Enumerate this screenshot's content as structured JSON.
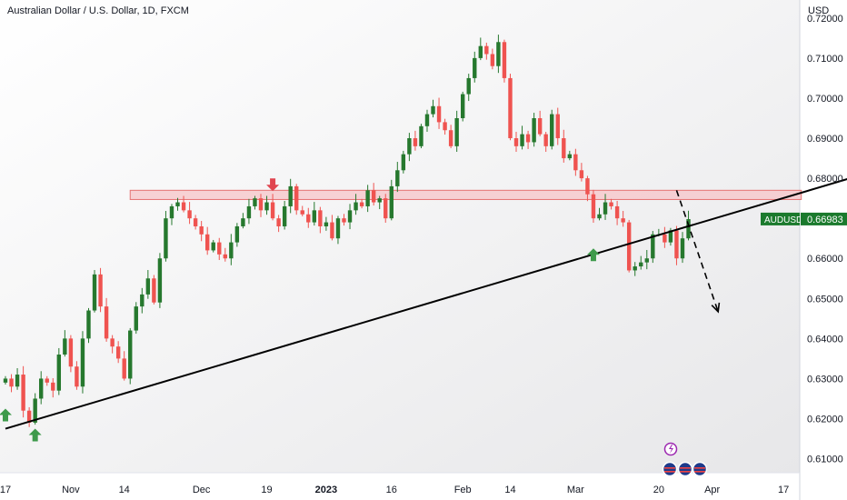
{
  "chart_data": {
    "type": "candlestick",
    "title": "Australian Dollar / U.S. Dollar, 1D, FXCM",
    "currency_label": "USD",
    "symbol_label": "AUDUSD",
    "last_price_text": "0.66983",
    "last_price": 0.66983,
    "ylim": [
      0.6065,
      0.7245
    ],
    "y_ticks": [
      "0.72000",
      "0.71000",
      "0.70000",
      "0.69000",
      "0.68000",
      "0.67000",
      "0.66000",
      "0.65000",
      "0.64000",
      "0.63000",
      "0.62000",
      "0.61000"
    ],
    "x_ticks": [
      {
        "label": "17",
        "i": 0
      },
      {
        "label": "Nov",
        "i": 11
      },
      {
        "label": "14",
        "i": 20
      },
      {
        "label": "Dec",
        "i": 33
      },
      {
        "label": "19",
        "i": 44
      },
      {
        "label": "2023",
        "i": 54,
        "bold": true
      },
      {
        "label": "16",
        "i": 65
      },
      {
        "label": "Feb",
        "i": 77
      },
      {
        "label": "14",
        "i": 85
      },
      {
        "label": "Mar",
        "i": 96
      },
      {
        "label": "20",
        "i": 110
      },
      {
        "label": "Apr",
        "i": 119
      },
      {
        "label": "17",
        "i": 131
      }
    ],
    "closes": [
      0.63,
      0.628,
      0.631,
      0.622,
      0.619,
      0.625,
      0.63,
      0.629,
      0.627,
      0.636,
      0.64,
      0.633,
      0.628,
      0.64,
      0.647,
      0.656,
      0.648,
      0.64,
      0.638,
      0.635,
      0.63,
      0.642,
      0.648,
      0.651,
      0.655,
      0.649,
      0.66,
      0.67,
      0.673,
      0.674,
      0.672,
      0.67,
      0.668,
      0.666,
      0.662,
      0.664,
      0.661,
      0.66,
      0.664,
      0.668,
      0.67,
      0.673,
      0.675,
      0.672,
      0.674,
      0.67,
      0.668,
      0.673,
      0.678,
      0.672,
      0.671,
      0.669,
      0.672,
      0.668,
      0.669,
      0.665,
      0.67,
      0.669,
      0.672,
      0.674,
      0.673,
      0.677,
      0.674,
      0.675,
      0.67,
      0.678,
      0.682,
      0.686,
      0.69,
      0.688,
      0.693,
      0.696,
      0.698,
      0.694,
      0.692,
      0.688,
      0.695,
      0.701,
      0.705,
      0.71,
      0.713,
      0.711,
      0.708,
      0.714,
      0.705,
      0.69,
      0.688,
      0.691,
      0.689,
      0.695,
      0.691,
      0.688,
      0.696,
      0.69,
      0.685,
      0.686,
      0.682,
      0.68,
      0.676,
      0.67,
      0.671,
      0.674,
      0.673,
      0.67,
      0.669,
      0.657,
      0.658,
      0.659,
      0.66,
      0.666,
      0.666,
      0.664,
      0.667,
      0.66,
      0.665,
      0.6698
    ],
    "annotations": {
      "resistance_zone": {
        "from": 0.6747,
        "to": 0.677,
        "i_start": 21,
        "i_end": 134
      },
      "trendline": {
        "i_start": 0,
        "p_start": 0.6175,
        "i_end": 152,
        "p_end": 0.6843
      },
      "projection_arrow": {
        "i_start": 113,
        "p_start": 0.677,
        "i_end": 120,
        "p_end": 0.6467
      },
      "up_arrow_indices": [
        0,
        5,
        99
      ],
      "down_arrow_index": 45
    },
    "colors": {
      "up": "#26782e",
      "down": "#ef5350",
      "zone_fill": "#f7c4c8",
      "zone_stroke": "#e57373",
      "line": "#000000",
      "arrow_up": "#3e9a4b",
      "arrow_down": "#e04550",
      "price_tag": "#1b7a2d",
      "event_purple": "#9c27b0"
    },
    "event_icons": [
      "lightning-icon",
      "flag-au-icon",
      "flag-us-icon"
    ]
  }
}
